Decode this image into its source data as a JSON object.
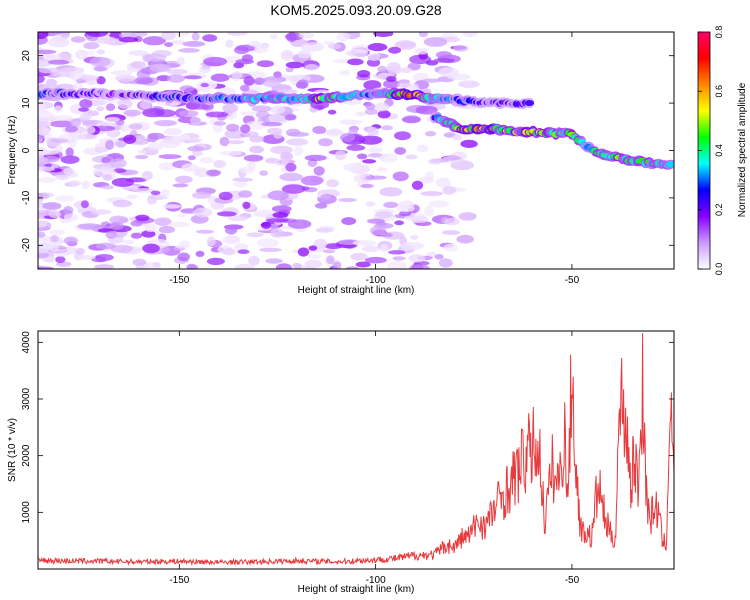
{
  "title": "KOM5.2025.093.20.09.G28",
  "chart_data": [
    {
      "type": "heatmap",
      "xlabel": "Height of straight line (km)",
      "ylabel": "Frequency (Hz)",
      "xlim": [
        -186,
        -24
      ],
      "ylim": [
        -25,
        25
      ],
      "xticks": [
        -150,
        -100,
        -50
      ],
      "xtick_labels": [
        "-150",
        "-100",
        "-50"
      ],
      "yticks": [
        20,
        10,
        0,
        -10,
        -20
      ],
      "ytick_labels": [
        "20",
        "10",
        "0",
        "-10",
        "-20"
      ],
      "colorbar": {
        "label": "Normalized spectral amplitude",
        "range": [
          0,
          0.8
        ],
        "ticks": [
          0,
          0.2,
          0.4,
          0.6,
          0.8
        ],
        "tick_labels": [
          "0.0",
          "0.2",
          "0.4",
          "0.6",
          "0.8"
        ],
        "colormap": [
          "#ffffff",
          "#cc99ff",
          "#8800ff",
          "#0000ff",
          "#00ffff",
          "#00ff00",
          "#ffff00",
          "#ff8800",
          "#ff0000",
          "#ff0066"
        ]
      },
      "ridge": {
        "description_points": [
          {
            "x": -186,
            "y": 12,
            "amp": 0.3
          },
          {
            "x": -170,
            "y": 12,
            "amp": 0.2
          },
          {
            "x": -145,
            "y": 11,
            "amp": 0.3
          },
          {
            "x": -125,
            "y": 11,
            "amp": 0.35
          },
          {
            "x": -113,
            "y": 11,
            "amp": 0.5
          },
          {
            "x": -100,
            "y": 12,
            "amp": 0.3
          },
          {
            "x": -92,
            "y": 12,
            "amp": 0.65
          },
          {
            "x": -85,
            "y": 11,
            "amp": 0.35
          },
          {
            "x": -70,
            "y": 10,
            "amp": 0.2
          },
          {
            "x": -60,
            "y": 10,
            "amp": 0.25
          },
          {
            "x": -85,
            "y": 7,
            "amp": 0.3
          },
          {
            "x": -78,
            "y": 4.5,
            "amp": 0.6
          },
          {
            "x": -70,
            "y": 4.5,
            "amp": 0.55
          },
          {
            "x": -64,
            "y": 4,
            "amp": 0.5
          },
          {
            "x": -50,
            "y": 3.5,
            "amp": 0.45
          },
          {
            "x": -45,
            "y": 0,
            "amp": 0.4
          },
          {
            "x": -38,
            "y": -1.5,
            "amp": 0.45
          },
          {
            "x": -32,
            "y": -2.5,
            "amp": 0.45
          },
          {
            "x": -24,
            "y": -3,
            "amp": 0.35
          }
        ]
      }
    },
    {
      "type": "line",
      "xlabel": "Height of straight line (km)",
      "ylabel": "SNR (10 * v/v)",
      "xlim": [
        -186,
        -24
      ],
      "ylim": [
        0,
        4200
      ],
      "xticks": [
        -150,
        -100,
        -50
      ],
      "xtick_labels": [
        "-150",
        "-100",
        "-50"
      ],
      "yticks": [
        1000,
        2000,
        3000,
        4000
      ],
      "ytick_labels": [
        "1000",
        "2000",
        "3000",
        "4000"
      ],
      "color": "#e8393c",
      "series": [
        {
          "x": [
            -186,
            -180,
            -170,
            -160,
            -150,
            -140,
            -130,
            -120,
            -110,
            -100,
            -95,
            -90,
            -85,
            -82,
            -80,
            -78,
            -76,
            -74,
            -72,
            -70,
            -68,
            -66,
            -64,
            -62,
            -60,
            -59,
            -58,
            -57,
            -56,
            -55,
            -54,
            -53,
            -52,
            -51,
            -50,
            -49,
            -48,
            -47,
            -46,
            -45,
            -44,
            -43,
            -42,
            -41,
            -40,
            -39,
            -38,
            -37,
            -36,
            -35,
            -34,
            -33,
            -32,
            -31,
            -30,
            -29,
            -28,
            -27,
            -26,
            -25,
            -24
          ],
          "y": [
            180,
            170,
            160,
            150,
            160,
            140,
            150,
            170,
            150,
            190,
            220,
            280,
            300,
            500,
            450,
            650,
            700,
            1000,
            900,
            1200,
            1500,
            1700,
            2000,
            2300,
            2500,
            2600,
            2200,
            1000,
            1500,
            2100,
            1800,
            1900,
            2900,
            1500,
            4200,
            2100,
            1000,
            700,
            800,
            600,
            1400,
            1700,
            1200,
            900,
            700,
            600,
            3000,
            3600,
            2800,
            1800,
            2300,
            1700,
            3950,
            1500,
            1000,
            1300,
            1200,
            600,
            500,
            3500,
            1700
          ]
        }
      ]
    }
  ]
}
